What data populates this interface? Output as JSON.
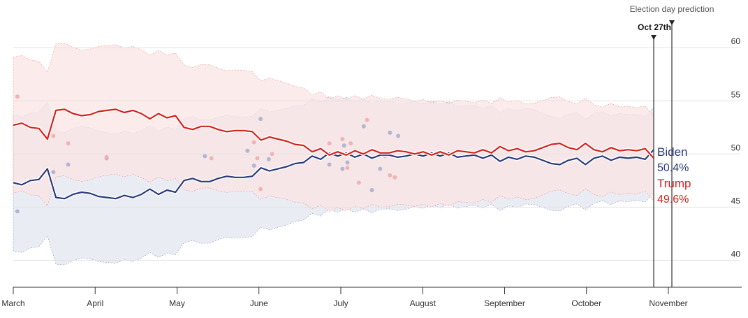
{
  "chart_data": {
    "type": "line",
    "annotation": "Election day prediction",
    "current_date_label": "Oct 27th",
    "x_tick_labels": [
      "March",
      "April",
      "May",
      "June",
      "July",
      "August",
      "September",
      "October",
      "November"
    ],
    "y_ticks": [
      40,
      45,
      50,
      55,
      60
    ],
    "ylim": [
      37,
      61
    ],
    "colors": {
      "biden": "#2b3b7c",
      "trump": "#d3221c",
      "biden_band": "#e6e9f2",
      "trump_band": "#fbe4e4",
      "overlap_band": "#eedfe6",
      "grid": "#e2e2e2",
      "axis": "#333333"
    },
    "series": [
      {
        "name": "Biden",
        "end_value": "50.4%",
        "values": [
          47.3,
          47.1,
          47.5,
          47.6,
          48.6,
          45.9,
          45.8,
          46.2,
          46.4,
          46.3,
          46.0,
          45.9,
          45.8,
          46.1,
          45.9,
          46.2,
          46.7,
          46.2,
          46.6,
          46.4,
          47.5,
          47.7,
          47.4,
          47.4,
          47.7,
          47.9,
          47.8,
          47.8,
          47.9,
          48.7,
          48.4,
          48.6,
          48.8,
          49.1,
          49.2,
          49.8,
          49.5,
          50.1,
          49.8,
          50.1,
          49.7,
          50.0,
          49.6,
          49.9,
          49.9,
          49.7,
          49.8,
          50.0,
          49.8,
          50.1,
          49.8,
          50.1,
          49.7,
          49.8,
          49.9,
          49.6,
          49.9,
          49.3,
          49.7,
          49.5,
          49.8,
          49.7,
          49.4,
          49.1,
          49.0,
          49.4,
          49.6,
          49.0,
          49.6,
          49.8,
          49.4,
          49.7,
          49.6,
          49.7,
          49.5,
          50.4
        ]
      },
      {
        "name": "Trump",
        "end_value": "49.6%",
        "values": [
          52.7,
          52.9,
          52.5,
          52.4,
          51.4,
          54.1,
          54.2,
          53.8,
          53.6,
          53.7,
          54.0,
          54.1,
          54.2,
          53.9,
          54.1,
          53.8,
          53.3,
          53.8,
          53.4,
          53.6,
          52.5,
          52.3,
          52.6,
          52.6,
          52.3,
          52.1,
          52.2,
          52.2,
          52.1,
          51.3,
          51.6,
          51.4,
          51.2,
          50.9,
          50.8,
          50.2,
          50.5,
          49.9,
          50.2,
          49.9,
          50.3,
          50.0,
          50.4,
          50.1,
          50.1,
          50.3,
          50.2,
          50.0,
          50.2,
          49.9,
          50.2,
          49.9,
          50.3,
          50.2,
          50.1,
          50.4,
          50.1,
          50.7,
          50.3,
          50.5,
          50.2,
          50.3,
          50.6,
          50.9,
          51.0,
          50.6,
          50.4,
          51.0,
          50.4,
          50.2,
          50.6,
          50.3,
          50.4,
          50.3,
          50.5,
          49.6
        ]
      }
    ],
    "poll_dots": [
      {
        "party": "biden",
        "x": 0.05,
        "y": 44.6
      },
      {
        "party": "trump",
        "x": 0.05,
        "y": 55.4
      },
      {
        "party": "biden",
        "x": 0.49,
        "y": 48.3
      },
      {
        "party": "trump",
        "x": 0.49,
        "y": 51.7
      },
      {
        "party": "biden",
        "x": 0.67,
        "y": 49.0
      },
      {
        "party": "trump",
        "x": 0.67,
        "y": 51.0
      },
      {
        "party": "biden",
        "x": 1.14,
        "y": 49.6
      },
      {
        "party": "trump",
        "x": 1.14,
        "y": 49.7
      },
      {
        "party": "biden",
        "x": 2.34,
        "y": 49.8
      },
      {
        "party": "trump",
        "x": 2.42,
        "y": 49.6
      },
      {
        "party": "biden",
        "x": 3.02,
        "y": 53.3
      },
      {
        "party": "trump",
        "x": 3.02,
        "y": 46.7
      },
      {
        "party": "biden",
        "x": 2.94,
        "y": 48.9
      },
      {
        "party": "trump",
        "x": 2.94,
        "y": 51.1
      },
      {
        "party": "biden",
        "x": 2.86,
        "y": 50.3
      },
      {
        "party": "trump",
        "x": 2.98,
        "y": 49.6
      },
      {
        "party": "biden",
        "x": 3.12,
        "y": 49.5
      },
      {
        "party": "trump",
        "x": 3.16,
        "y": 50.0
      },
      {
        "party": "biden",
        "x": 3.86,
        "y": 49.0
      },
      {
        "party": "trump",
        "x": 3.86,
        "y": 51.0
      },
      {
        "party": "biden",
        "x": 4.02,
        "y": 48.6
      },
      {
        "party": "trump",
        "x": 4.02,
        "y": 51.4
      },
      {
        "party": "biden",
        "x": 4.08,
        "y": 49.2
      },
      {
        "party": "trump",
        "x": 4.12,
        "y": 51.0
      },
      {
        "party": "biden",
        "x": 4.04,
        "y": 50.8
      },
      {
        "party": "trump",
        "x": 4.08,
        "y": 48.7
      },
      {
        "party": "biden",
        "x": 4.28,
        "y": 52.6
      },
      {
        "party": "trump",
        "x": 4.22,
        "y": 47.3
      },
      {
        "party": "biden",
        "x": 4.38,
        "y": 46.6
      },
      {
        "party": "trump",
        "x": 4.32,
        "y": 53.2
      },
      {
        "party": "biden",
        "x": 4.6,
        "y": 52.0
      },
      {
        "party": "trump",
        "x": 4.6,
        "y": 48.0
      },
      {
        "party": "biden",
        "x": 4.7,
        "y": 51.7
      },
      {
        "party": "trump",
        "x": 4.66,
        "y": 47.8
      },
      {
        "party": "biden",
        "x": 4.48,
        "y": 48.6
      },
      {
        "party": "trump",
        "x": 4.54,
        "y": 49.8
      }
    ]
  }
}
